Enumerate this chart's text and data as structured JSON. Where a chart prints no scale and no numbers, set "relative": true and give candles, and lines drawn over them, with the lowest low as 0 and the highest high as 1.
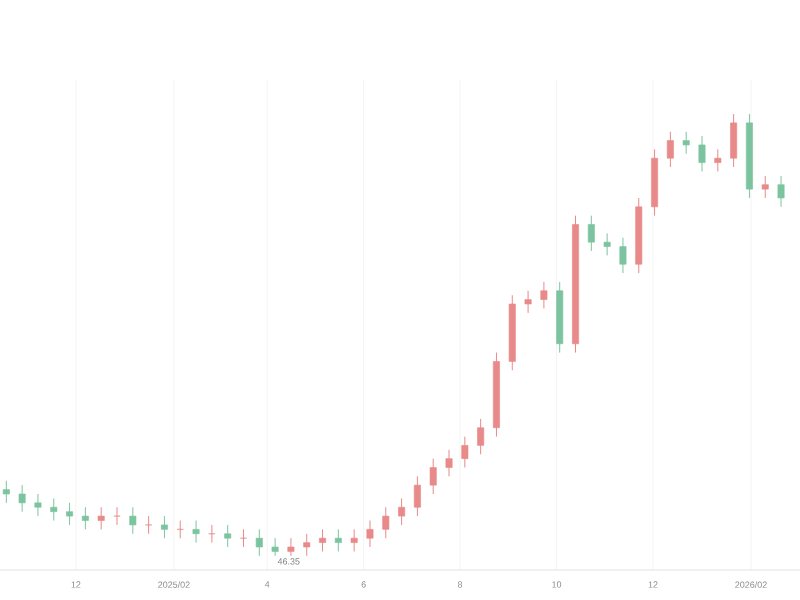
{
  "chart_data": {
    "type": "candlestick",
    "relative": true,
    "grid": "x",
    "x": [
      "2024-10-18",
      "2024-10-28",
      "2024-11-07",
      "2024-11-17",
      "2024-11-27",
      "2024-12-07",
      "2024-12-17",
      "2024-12-27",
      "2025-01-06",
      "2025-01-16",
      "2025-01-26",
      "2025-02-05",
      "2025-02-15",
      "2025-02-25",
      "2025-03-07",
      "2025-03-17",
      "2025-03-27",
      "2025-04-06",
      "2025-04-16",
      "2025-04-26",
      "2025-05-06",
      "2025-05-16",
      "2025-05-26",
      "2025-06-05",
      "2025-06-15",
      "2025-06-25",
      "2025-07-05",
      "2025-07-15",
      "2025-07-25",
      "2025-08-04",
      "2025-08-14",
      "2025-08-24",
      "2025-09-03",
      "2025-09-13",
      "2025-09-23",
      "2025-10-03",
      "2025-10-13",
      "2025-10-23",
      "2025-11-02",
      "2025-11-12",
      "2025-11-22",
      "2025-12-02",
      "2025-12-12",
      "2025-12-22",
      "2026-01-01",
      "2026-01-11",
      "2026-01-21",
      "2026-01-31",
      "2026-02-10",
      "2026-02-20"
    ],
    "ohlc": [
      [
        0.15,
        0.17,
        0.12,
        0.14
      ],
      [
        0.14,
        0.16,
        0.1,
        0.12
      ],
      [
        0.12,
        0.14,
        0.09,
        0.11
      ],
      [
        0.11,
        0.13,
        0.08,
        0.1
      ],
      [
        0.1,
        0.12,
        0.07,
        0.09
      ],
      [
        0.09,
        0.11,
        0.06,
        0.08
      ],
      [
        0.08,
        0.11,
        0.06,
        0.09
      ],
      [
        0.09,
        0.11,
        0.07,
        0.09
      ],
      [
        0.09,
        0.11,
        0.05,
        0.07
      ],
      [
        0.07,
        0.09,
        0.05,
        0.07
      ],
      [
        0.07,
        0.09,
        0.04,
        0.06
      ],
      [
        0.06,
        0.08,
        0.04,
        0.06
      ],
      [
        0.06,
        0.08,
        0.03,
        0.05
      ],
      [
        0.05,
        0.07,
        0.03,
        0.05
      ],
      [
        0.05,
        0.07,
        0.02,
        0.04
      ],
      [
        0.04,
        0.06,
        0.02,
        0.04
      ],
      [
        0.04,
        0.06,
        0.0,
        0.02
      ],
      [
        0.02,
        0.04,
        0.0,
        0.01
      ],
      [
        0.01,
        0.04,
        0.0,
        0.02
      ],
      [
        0.02,
        0.05,
        0.0,
        0.03
      ],
      [
        0.03,
        0.06,
        0.01,
        0.04
      ],
      [
        0.04,
        0.06,
        0.01,
        0.03
      ],
      [
        0.03,
        0.06,
        0.01,
        0.04
      ],
      [
        0.04,
        0.08,
        0.02,
        0.06
      ],
      [
        0.06,
        0.11,
        0.04,
        0.09
      ],
      [
        0.09,
        0.13,
        0.07,
        0.11
      ],
      [
        0.11,
        0.18,
        0.09,
        0.16
      ],
      [
        0.16,
        0.22,
        0.14,
        0.2
      ],
      [
        0.2,
        0.24,
        0.18,
        0.22
      ],
      [
        0.22,
        0.27,
        0.2,
        0.25
      ],
      [
        0.25,
        0.31,
        0.23,
        0.29
      ],
      [
        0.29,
        0.46,
        0.27,
        0.44
      ],
      [
        0.44,
        0.59,
        0.42,
        0.57
      ],
      [
        0.57,
        0.6,
        0.55,
        0.58
      ],
      [
        0.58,
        0.62,
        0.56,
        0.6
      ],
      [
        0.6,
        0.62,
        0.46,
        0.48
      ],
      [
        0.48,
        0.77,
        0.46,
        0.75
      ],
      [
        0.75,
        0.77,
        0.69,
        0.71
      ],
      [
        0.71,
        0.73,
        0.68,
        0.7
      ],
      [
        0.7,
        0.72,
        0.64,
        0.66
      ],
      [
        0.66,
        0.81,
        0.64,
        0.79
      ],
      [
        0.79,
        0.92,
        0.77,
        0.9
      ],
      [
        0.9,
        0.96,
        0.88,
        0.94
      ],
      [
        0.94,
        0.96,
        0.91,
        0.93
      ],
      [
        0.93,
        0.95,
        0.87,
        0.89
      ],
      [
        0.89,
        0.92,
        0.87,
        0.9
      ],
      [
        0.9,
        1.0,
        0.88,
        0.98
      ],
      [
        0.98,
        1.0,
        0.81,
        0.83
      ],
      [
        0.83,
        0.86,
        0.81,
        0.84
      ],
      [
        0.84,
        0.86,
        0.79,
        0.81
      ]
    ],
    "xlim": [
      "2024-10-14",
      "2026-03-04"
    ],
    "xticks": [
      {
        "value": "2024-12-01",
        "label": "12"
      },
      {
        "value": "2025-02-01",
        "label": "2025/02"
      },
      {
        "value": "2025-04-01",
        "label": "4"
      },
      {
        "value": "2025-06-01",
        "label": "6"
      },
      {
        "value": "2025-08-01",
        "label": "8"
      },
      {
        "value": "2025-10-01",
        "label": "10"
      },
      {
        "value": "2025-12-01",
        "label": "12"
      },
      {
        "value": "2026-02-01",
        "label": "2026/02"
      }
    ],
    "annotations": [
      {
        "text": "46.35",
        "x": "2025-04-06",
        "y": 0
      }
    ]
  }
}
